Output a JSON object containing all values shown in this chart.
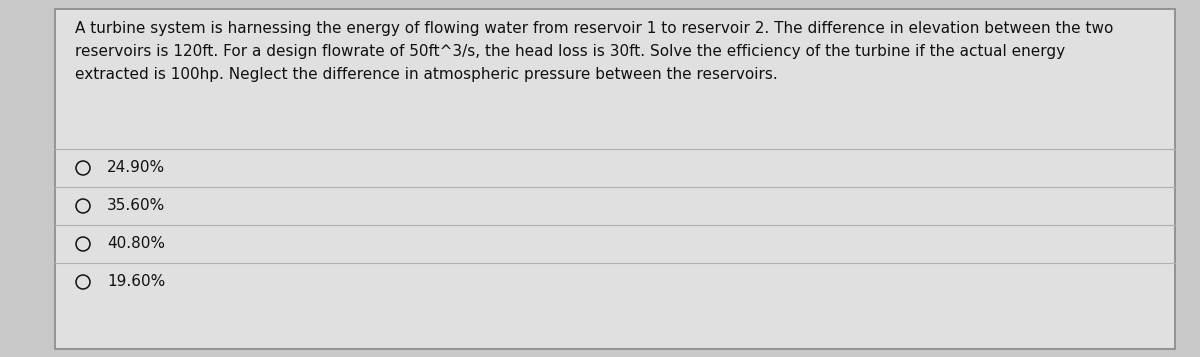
{
  "question_text": "A turbine system is harnessing the energy of flowing water from reservoir 1 to reservoir 2. The difference in elevation between the two\nreservoirs is 120ft. For a design flowrate of 50ft^3/s, the head loss is 30ft. Solve the efficiency of the turbine if the actual energy\nextracted is 100hp. Neglect the difference in atmospheric pressure between the reservoirs.",
  "options": [
    "24.90%",
    "35.60%",
    "40.80%",
    "19.60%"
  ],
  "bg_color": "#c8c8c8",
  "panel_color": "#e0e0e0",
  "border_color": "#888888",
  "text_color": "#111111",
  "line_color": "#b0b0b0",
  "font_size_question": 11.0,
  "font_size_options": 11.0
}
